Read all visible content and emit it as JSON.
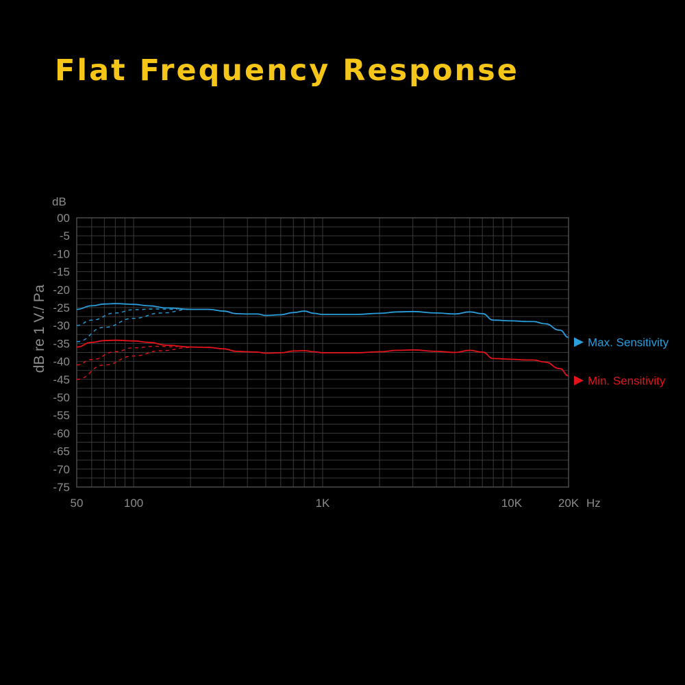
{
  "title": "Flat Frequency Response",
  "colors": {
    "title": "#f5c518",
    "grid": "#3a3a3a",
    "axis_text": "#8c8c8c",
    "max_series": "#2a9fde",
    "min_series": "#e3131b"
  },
  "chart_data": {
    "type": "line",
    "title": "Flat Frequency Response",
    "ylabel": "dB re 1 V./ Pa",
    "yunit_label": "dB",
    "xunit_label": "Hz",
    "x_scale": "log",
    "xlim": [
      50,
      20000
    ],
    "ylim": [
      -75,
      0
    ],
    "grid": true,
    "legend_placement": "right",
    "x_ticks": [
      {
        "value": 50,
        "label": "50"
      },
      {
        "value": 100,
        "label": "100"
      },
      {
        "value": 1000,
        "label": "1K"
      },
      {
        "value": 10000,
        "label": "10K"
      },
      {
        "value": 20000,
        "label": "20K"
      }
    ],
    "y_ticks": [
      {
        "value": 0,
        "label": "00"
      },
      {
        "value": -5,
        "label": "-5"
      },
      {
        "value": -10,
        "label": "-10"
      },
      {
        "value": -15,
        "label": "-15"
      },
      {
        "value": -20,
        "label": "-20"
      },
      {
        "value": -25,
        "label": "-25"
      },
      {
        "value": -30,
        "label": "-30"
      },
      {
        "value": -35,
        "label": "-35"
      },
      {
        "value": -40,
        "label": "-40"
      },
      {
        "value": -45,
        "label": "-45"
      },
      {
        "value": -50,
        "label": "-50"
      },
      {
        "value": -55,
        "label": "-55"
      },
      {
        "value": -60,
        "label": "-60"
      },
      {
        "value": -65,
        "label": "-65"
      },
      {
        "value": -70,
        "label": "-70"
      },
      {
        "value": -75,
        "label": "-75"
      }
    ],
    "series": [
      {
        "name": "Max. Sensitivity",
        "color": "#2a9fde",
        "style": "solid",
        "points": [
          [
            50,
            -25.5
          ],
          [
            60,
            -24.5
          ],
          [
            70,
            -24.0
          ],
          [
            80,
            -23.9
          ],
          [
            100,
            -24.1
          ],
          [
            120,
            -24.5
          ],
          [
            150,
            -25.1
          ],
          [
            200,
            -25.5
          ],
          [
            250,
            -25.5
          ],
          [
            300,
            -26.0
          ],
          [
            350,
            -26.7
          ],
          [
            400,
            -26.8
          ],
          [
            450,
            -26.8
          ],
          [
            500,
            -27.2
          ],
          [
            600,
            -27.0
          ],
          [
            700,
            -26.4
          ],
          [
            800,
            -26.0
          ],
          [
            900,
            -26.6
          ],
          [
            1000,
            -26.9
          ],
          [
            1500,
            -26.9
          ],
          [
            2000,
            -26.6
          ],
          [
            2500,
            -26.2
          ],
          [
            3000,
            -26.1
          ],
          [
            4000,
            -26.5
          ],
          [
            5000,
            -26.8
          ],
          [
            6000,
            -26.2
          ],
          [
            7000,
            -26.7
          ],
          [
            8000,
            -28.5
          ],
          [
            10000,
            -28.7
          ],
          [
            12000,
            -28.9
          ],
          [
            13000,
            -28.9
          ],
          [
            15000,
            -29.5
          ],
          [
            18000,
            -31.3
          ],
          [
            20000,
            -33.3
          ]
        ]
      },
      {
        "name": "Min. Sensitivity",
        "color": "#e3131b",
        "style": "solid",
        "points": [
          [
            50,
            -36.0
          ],
          [
            60,
            -34.7
          ],
          [
            70,
            -34.2
          ],
          [
            80,
            -34.1
          ],
          [
            100,
            -34.3
          ],
          [
            120,
            -34.7
          ],
          [
            150,
            -35.5
          ],
          [
            200,
            -36.0
          ],
          [
            250,
            -36.1
          ],
          [
            300,
            -36.5
          ],
          [
            350,
            -37.2
          ],
          [
            400,
            -37.3
          ],
          [
            450,
            -37.4
          ],
          [
            500,
            -37.7
          ],
          [
            600,
            -37.6
          ],
          [
            700,
            -37.1
          ],
          [
            800,
            -37.0
          ],
          [
            900,
            -37.3
          ],
          [
            1000,
            -37.6
          ],
          [
            1500,
            -37.6
          ],
          [
            2000,
            -37.3
          ],
          [
            2500,
            -36.9
          ],
          [
            3000,
            -36.8
          ],
          [
            4000,
            -37.2
          ],
          [
            5000,
            -37.5
          ],
          [
            6000,
            -36.9
          ],
          [
            7000,
            -37.4
          ],
          [
            8000,
            -39.2
          ],
          [
            10000,
            -39.4
          ],
          [
            12000,
            -39.6
          ],
          [
            13000,
            -39.6
          ],
          [
            15000,
            -40.2
          ],
          [
            18000,
            -42.0
          ],
          [
            20000,
            -44.0
          ]
        ]
      },
      {
        "color": "#2a9fde",
        "style": "dashed",
        "points": [
          [
            50,
            -30.0
          ],
          [
            60,
            -28.5
          ],
          [
            80,
            -26.5
          ],
          [
            100,
            -25.6
          ],
          [
            130,
            -25.4
          ],
          [
            170,
            -25.5
          ]
        ]
      },
      {
        "color": "#2a9fde",
        "style": "dashed",
        "points": [
          [
            50,
            -34.5
          ],
          [
            70,
            -30.5
          ],
          [
            100,
            -28.0
          ],
          [
            140,
            -26.5
          ],
          [
            200,
            -25.5
          ]
        ]
      },
      {
        "color": "#e3131b",
        "style": "dashed",
        "points": [
          [
            50,
            -41.0
          ],
          [
            60,
            -39.5
          ],
          [
            80,
            -37.3
          ],
          [
            100,
            -36.2
          ],
          [
            130,
            -35.8
          ],
          [
            170,
            -35.9
          ]
        ]
      },
      {
        "color": "#e3131b",
        "style": "dashed",
        "points": [
          [
            50,
            -45.0
          ],
          [
            70,
            -41.0
          ],
          [
            100,
            -38.5
          ],
          [
            140,
            -37.0
          ],
          [
            200,
            -36.1
          ]
        ]
      }
    ]
  }
}
